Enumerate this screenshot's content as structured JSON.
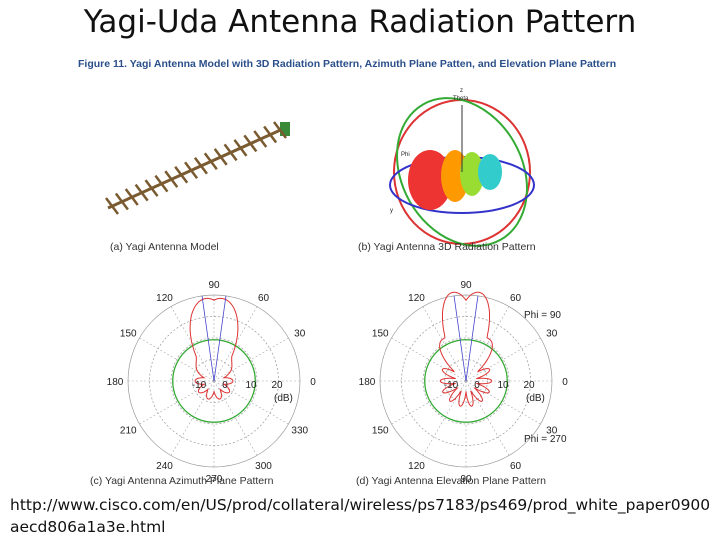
{
  "title": "Yagi-Uda Antenna Radiation Pattern",
  "figure": {
    "caption": "Figure 11. Yagi Antenna Model with 3D Radiation Pattern, Azimuth Plane Patten, and Elevation Plane Pattern",
    "panels": [
      {
        "caption": "(a) Yagi Antenna Model"
      },
      {
        "caption": "(b) Yagi Antenna 3D Radiation Pattern",
        "axis_labels": [
          "Theta",
          "Phi",
          "z",
          "y"
        ]
      },
      {
        "caption": "(c) Yagi Antenna Azimuth Plane Pattern",
        "angle_labels": [
          "90",
          "60",
          "30",
          "0",
          "330",
          "300",
          "270",
          "240",
          "210",
          "180",
          "150",
          "120"
        ],
        "radial_labels": [
          "-10",
          "0",
          "10",
          "20"
        ],
        "unit": "(dB)"
      },
      {
        "caption": "(d) Yagi Antenna Elevation Plane Pattern",
        "angle_labels": [
          "90",
          "60",
          "30",
          "0",
          "30",
          "60",
          "90",
          "120",
          "150",
          "180",
          "150",
          "120"
        ],
        "radial_labels": [
          "-10",
          "0",
          "10",
          "20"
        ],
        "unit": "(dB)",
        "notes": [
          "Phi = 90",
          "Phi = 270"
        ]
      }
    ]
  },
  "source_url": "http://www.cisco.com/en/US/prod/collateral/wireless/ps7183/ps469/prod_white_paper0900aecd806a1a3e.html"
}
